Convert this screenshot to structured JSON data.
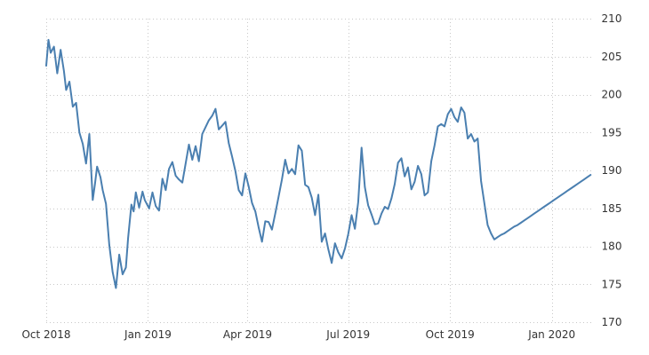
{
  "chart_data": {
    "type": "line",
    "title": "",
    "xlabel": "",
    "ylabel": "",
    "ylim": [
      170,
      210
    ],
    "yticks": [
      170,
      175,
      180,
      185,
      190,
      195,
      200,
      205,
      210
    ],
    "y_axis_position": "right",
    "grid": true,
    "legend": "none",
    "colors": {
      "line": "#4a7fb0",
      "grid": "#c8c8c8",
      "text": "#333333"
    },
    "x_ticks": [
      {
        "label": "Oct 2018",
        "date": "2018-10-01"
      },
      {
        "label": "Jan 2019",
        "date": "2019-01-01"
      },
      {
        "label": "Apr 2019",
        "date": "2019-04-01"
      },
      {
        "label": "Jul 2019",
        "date": "2019-07-01"
      },
      {
        "label": "Oct 2019",
        "date": "2019-10-01"
      },
      {
        "label": "Jan 2020",
        "date": "2020-01-01"
      }
    ],
    "xlim": [
      "2018-10-01",
      "2020-02-08"
    ],
    "series": [
      {
        "x": [
          "2018-10-01",
          "2018-10-03",
          "2018-10-05",
          "2018-10-08",
          "2018-10-11",
          "2018-10-14",
          "2018-10-17",
          "2018-10-19",
          "2018-10-22",
          "2018-10-25",
          "2018-10-28",
          "2018-10-31",
          "2018-11-03",
          "2018-11-06",
          "2018-11-09",
          "2018-11-12",
          "2018-11-14",
          "2018-11-16",
          "2018-11-19",
          "2018-11-21",
          "2018-11-24",
          "2018-11-27",
          "2018-11-30",
          "2018-12-03",
          "2018-12-06",
          "2018-12-09",
          "2018-12-12",
          "2018-12-14",
          "2018-12-17",
          "2018-12-19",
          "2018-12-21",
          "2018-12-24",
          "2018-12-27",
          "2018-12-29",
          "2019-01-02",
          "2019-01-05",
          "2019-01-08",
          "2019-01-11",
          "2019-01-14",
          "2019-01-17",
          "2019-01-20",
          "2019-01-23",
          "2019-01-26",
          "2019-01-29",
          "2019-02-01",
          "2019-02-04",
          "2019-02-07",
          "2019-02-10",
          "2019-02-13",
          "2019-02-16",
          "2019-02-19",
          "2019-02-22",
          "2019-02-25",
          "2019-02-28",
          "2019-03-03",
          "2019-03-06",
          "2019-03-09",
          "2019-03-12",
          "2019-03-15",
          "2019-03-18",
          "2019-03-21",
          "2019-03-24",
          "2019-03-27",
          "2019-03-30",
          "2019-04-02",
          "2019-04-05",
          "2019-04-08",
          "2019-04-11",
          "2019-04-14",
          "2019-04-17",
          "2019-04-20",
          "2019-04-23",
          "2019-04-26",
          "2019-04-29",
          "2019-05-02",
          "2019-05-05",
          "2019-05-08",
          "2019-05-11",
          "2019-05-14",
          "2019-05-17",
          "2019-05-20",
          "2019-05-23",
          "2019-05-26",
          "2019-05-29",
          "2019-06-01",
          "2019-06-04",
          "2019-06-07",
          "2019-06-10",
          "2019-06-13",
          "2019-06-16",
          "2019-06-19",
          "2019-06-22",
          "2019-06-25",
          "2019-06-28",
          "2019-07-01",
          "2019-07-04",
          "2019-07-07",
          "2019-07-10",
          "2019-07-13",
          "2019-07-16",
          "2019-07-19",
          "2019-07-22",
          "2019-07-25",
          "2019-07-28",
          "2019-07-31",
          "2019-08-03",
          "2019-08-06",
          "2019-08-09",
          "2019-08-12",
          "2019-08-15",
          "2019-08-18",
          "2019-08-21",
          "2019-08-24",
          "2019-08-27",
          "2019-08-30",
          "2019-09-02",
          "2019-09-05",
          "2019-09-08",
          "2019-09-11",
          "2019-09-14",
          "2019-09-17",
          "2019-09-20",
          "2019-09-23",
          "2019-09-26",
          "2019-09-29",
          "2019-10-02",
          "2019-10-05",
          "2019-10-08",
          "2019-10-11",
          "2019-10-14",
          "2019-10-17",
          "2019-10-20",
          "2019-10-23",
          "2019-10-26",
          "2019-10-29",
          "2019-11-01",
          "2019-11-04",
          "2019-11-07",
          "2019-11-10",
          "2019-11-13",
          "2019-11-16",
          "2019-11-19",
          "2019-11-22",
          "2019-11-25",
          "2019-11-28",
          "2019-12-01",
          "2019-12-04",
          "2019-12-07",
          "2019-12-10",
          "2019-12-13",
          "2019-12-16",
          "2019-12-19",
          "2019-12-22",
          "2019-12-25",
          "2019-12-28",
          "2019-12-31",
          "2020-01-03",
          "2020-01-06",
          "2020-01-09",
          "2020-01-12",
          "2020-01-15",
          "2020-01-18",
          "2020-01-21",
          "2020-01-24",
          "2020-01-27",
          "2020-01-30",
          "2020-02-02",
          "2020-02-05"
        ],
        "values": [
          203.8,
          207.2,
          205.5,
          206.3,
          202.8,
          205.9,
          203.1,
          200.6,
          201.7,
          198.4,
          198.9,
          195.0,
          193.5,
          190.9,
          194.8,
          186.1,
          188.2,
          190.5,
          189.1,
          187.4,
          185.6,
          180.2,
          176.6,
          174.5,
          178.9,
          176.3,
          177.2,
          181.1,
          185.5,
          184.6,
          187.1,
          185.1,
          187.2,
          186.1,
          185.0,
          187.1,
          185.3,
          184.7,
          188.9,
          187.4,
          190.2,
          191.1,
          189.3,
          188.8,
          188.4,
          190.9,
          193.4,
          191.4,
          193.2,
          191.2,
          194.8,
          195.7,
          196.6,
          197.2,
          198.1,
          195.4,
          195.9,
          196.4,
          193.6,
          191.8,
          189.9,
          187.4,
          186.7,
          189.6,
          187.9,
          185.7,
          184.6,
          182.5,
          180.6,
          183.3,
          183.2,
          182.2,
          184.3,
          186.5,
          188.8,
          191.4,
          189.6,
          190.2,
          189.5,
          193.3,
          192.6,
          188.1,
          187.8,
          186.4,
          184.1,
          186.8,
          180.6,
          181.7,
          179.6,
          177.8,
          180.4,
          179.2,
          178.4,
          179.7,
          181.6,
          184.1,
          182.3,
          185.8,
          193.0,
          187.8,
          185.4,
          184.2,
          182.9,
          183.0,
          184.3,
          185.2,
          184.9,
          186.3,
          188.2,
          191.0,
          191.6,
          189.2,
          190.4,
          187.5,
          188.5,
          190.6,
          189.5,
          186.7,
          187.1,
          191.2,
          193.3,
          195.8,
          196.1,
          195.8,
          197.4,
          198.1,
          197.0,
          196.4,
          198.3,
          197.6,
          194.2,
          194.8,
          193.8,
          194.2,
          188.6,
          185.7,
          182.8,
          181.7,
          180.9,
          181.2,
          181.5,
          181.7,
          182.0,
          182.3,
          182.6,
          182.8,
          183.1,
          183.4,
          183.7,
          184.0,
          184.3,
          184.6,
          184.9,
          185.2,
          185.5,
          185.8,
          186.1,
          186.4,
          186.7,
          187.0,
          187.3,
          187.6,
          187.9,
          188.2,
          188.5,
          188.8,
          189.1,
          189.4
        ]
      }
    ]
  }
}
